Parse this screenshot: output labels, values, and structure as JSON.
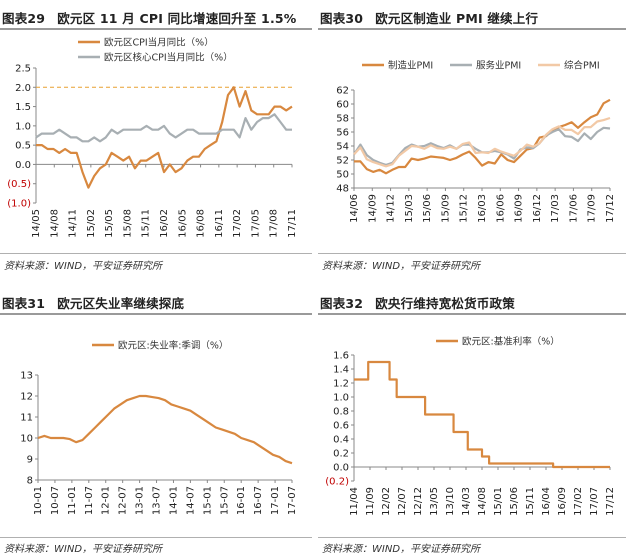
{
  "colors": {
    "orange": "#D8883F",
    "gray": "#A8AFB3",
    "light_orange": "#F2C9A6",
    "dashed": "#E8A030",
    "negative_label": "#C00000"
  },
  "panels": [
    {
      "key": "p1",
      "title_num": "图表29",
      "title_text": "欧元区 11 月 CPI 同比增速回升至 1.5%",
      "source": "资料来源：WIND，平安证券研究所"
    },
    {
      "key": "p2",
      "title_num": "图表30",
      "title_text": "欧元区制造业 PMI 继续上行",
      "source": "资料来源：WIND，平安证券研究所"
    },
    {
      "key": "p3",
      "title_num": "图表31",
      "title_text": "欧元区失业率继续探底",
      "source": "资料来源：WIND，平安证券研究所"
    },
    {
      "key": "p4",
      "title_num": "图表32",
      "title_text": "欧央行维持宽松货币政策",
      "source": "资料来源：WIND，平安证券研究所"
    }
  ],
  "chart_data": [
    {
      "type": "line",
      "ylim": [
        -1.0,
        2.5
      ],
      "yticks": [
        "2.5",
        "2.0",
        "1.5",
        "1.0",
        "0.5",
        "0.0",
        "(0.5)",
        "(1.0)"
      ],
      "xticks": [
        "14/05",
        "14/08",
        "14/11",
        "15/02",
        "15/05",
        "15/08",
        "15/11",
        "16/02",
        "16/05",
        "16/08",
        "16/11",
        "17/02",
        "17/05",
        "17/08",
        "17/11"
      ],
      "reference_line": 2.0,
      "series": [
        {
          "name": "欧元区CPI当月同比（%）",
          "color": "orange",
          "values": [
            0.5,
            0.5,
            0.4,
            0.4,
            0.3,
            0.4,
            0.3,
            0.3,
            -0.2,
            -0.6,
            -0.3,
            -0.1,
            0.0,
            0.3,
            0.2,
            0.1,
            0.2,
            -0.1,
            0.1,
            0.1,
            0.2,
            0.3,
            -0.2,
            0.0,
            -0.2,
            -0.1,
            0.1,
            0.2,
            0.2,
            0.4,
            0.5,
            0.6,
            1.1,
            1.8,
            2.0,
            1.5,
            1.9,
            1.4,
            1.3,
            1.3,
            1.3,
            1.5,
            1.5,
            1.4,
            1.5
          ]
        },
        {
          "name": "欧元区核心CPI当月同比（%）",
          "color": "gray",
          "values": [
            0.7,
            0.8,
            0.8,
            0.8,
            0.9,
            0.8,
            0.7,
            0.7,
            0.6,
            0.6,
            0.7,
            0.6,
            0.7,
            0.9,
            0.8,
            0.9,
            0.9,
            0.9,
            0.9,
            1.0,
            0.9,
            0.9,
            1.0,
            0.8,
            0.7,
            0.8,
            0.9,
            0.9,
            0.8,
            0.8,
            0.8,
            0.8,
            0.9,
            0.9,
            0.9,
            0.7,
            1.2,
            0.9,
            1.1,
            1.2,
            1.2,
            1.3,
            1.1,
            0.9,
            0.9
          ]
        }
      ]
    },
    {
      "type": "line",
      "ylim": [
        48,
        62
      ],
      "yticks": [
        "62",
        "60",
        "58",
        "56",
        "54",
        "52",
        "50",
        "48"
      ],
      "xticks": [
        "14/06",
        "14/09",
        "14/12",
        "15/03",
        "15/06",
        "15/09",
        "15/12",
        "16/03",
        "16/06",
        "16/09",
        "16/12",
        "17/03",
        "17/06",
        "17/09",
        "17/12"
      ],
      "series": [
        {
          "name": "制造业PMI",
          "color": "orange",
          "values": [
            51.8,
            51.8,
            50.7,
            50.3,
            50.6,
            50.1,
            50.6,
            51.0,
            51.0,
            52.2,
            52.0,
            52.2,
            52.5,
            52.4,
            52.3,
            52.0,
            52.3,
            52.8,
            53.2,
            52.3,
            51.2,
            51.7,
            51.5,
            52.8,
            52.0,
            51.7,
            52.6,
            53.5,
            53.7,
            55.2,
            55.4,
            56.2,
            56.7,
            57.0,
            57.4,
            56.6,
            57.4,
            58.1,
            58.5,
            60.1,
            60.6
          ]
        },
        {
          "name": "服务业PMI",
          "color": "gray",
          "values": [
            52.8,
            54.2,
            52.7,
            52.0,
            51.6,
            51.3,
            51.6,
            52.7,
            53.7,
            54.2,
            53.9,
            54.0,
            54.4,
            54.0,
            53.7,
            54.1,
            53.6,
            54.2,
            54.2,
            53.6,
            53.1,
            53.1,
            53.3,
            53.1,
            52.8,
            52.2,
            53.5,
            53.8,
            53.7,
            54.4,
            55.5,
            56.0,
            56.4,
            55.4,
            55.3,
            54.7,
            55.8,
            55.0,
            56.0,
            56.6,
            56.5
          ]
        },
        {
          "name": "综合PMI",
          "color": "light_orange",
          "values": [
            52.8,
            53.8,
            52.1,
            51.7,
            51.4,
            51.1,
            51.4,
            52.6,
            53.3,
            54.0,
            53.9,
            53.6,
            54.1,
            53.7,
            53.6,
            53.9,
            53.6,
            54.3,
            54.5,
            53.0,
            53.1,
            53.0,
            53.6,
            53.2,
            52.9,
            52.6,
            53.3,
            54.2,
            53.9,
            54.4,
            55.6,
            56.4,
            56.8,
            56.3,
            56.3,
            55.7,
            56.7,
            56.7,
            57.5,
            57.7,
            58.0
          ]
        }
      ]
    },
    {
      "type": "line",
      "ylim": [
        8,
        13
      ],
      "yticks": [
        "13",
        "12",
        "11",
        "10",
        "9",
        "8"
      ],
      "xticks": [
        "10-01",
        "10-07",
        "11-01",
        "11-07",
        "12-01",
        "12-07",
        "13-01",
        "13-07",
        "14-01",
        "14-07",
        "15-01",
        "15-07",
        "16-01",
        "16-07",
        "17-01",
        "17-07"
      ],
      "series": [
        {
          "name": "欧元区:失业率:季调（%）",
          "color": "orange",
          "values": [
            10.0,
            10.1,
            10.0,
            10.0,
            10.0,
            9.95,
            9.8,
            9.9,
            10.2,
            10.5,
            10.8,
            11.1,
            11.4,
            11.6,
            11.8,
            11.9,
            12.0,
            12.0,
            11.95,
            11.9,
            11.8,
            11.6,
            11.5,
            11.4,
            11.3,
            11.1,
            10.9,
            10.7,
            10.5,
            10.4,
            10.3,
            10.2,
            10.0,
            9.9,
            9.8,
            9.6,
            9.4,
            9.2,
            9.1,
            8.9,
            8.8
          ]
        }
      ]
    },
    {
      "type": "step",
      "ylim": [
        -0.2,
        1.6
      ],
      "yticks": [
        "1.6",
        "1.4",
        "1.2",
        "1.0",
        "0.8",
        "0.6",
        "0.4",
        "0.2",
        "0.0",
        "(0.2)"
      ],
      "xticks": [
        "11/04",
        "11/09",
        "12/02",
        "12/07",
        "12/12",
        "13/05",
        "13/10",
        "14/03",
        "14/08",
        "15/01",
        "15/06",
        "15/11",
        "16/04",
        "16/09",
        "17/02",
        "17/07",
        "17/12"
      ],
      "series": [
        {
          "name": "欧元区:基准利率（%）",
          "color": "orange",
          "values": [
            1.25,
            1.25,
            1.5,
            1.5,
            1.5,
            1.25,
            1.0,
            1.0,
            1.0,
            1.0,
            0.75,
            0.75,
            0.75,
            0.75,
            0.5,
            0.5,
            0.25,
            0.25,
            0.15,
            0.05,
            0.05,
            0.05,
            0.05,
            0.05,
            0.05,
            0.05,
            0.05,
            0.05,
            0.0,
            0.0,
            0.0,
            0.0,
            0.0,
            0.0,
            0.0,
            0.0,
            0.0
          ]
        }
      ]
    }
  ]
}
